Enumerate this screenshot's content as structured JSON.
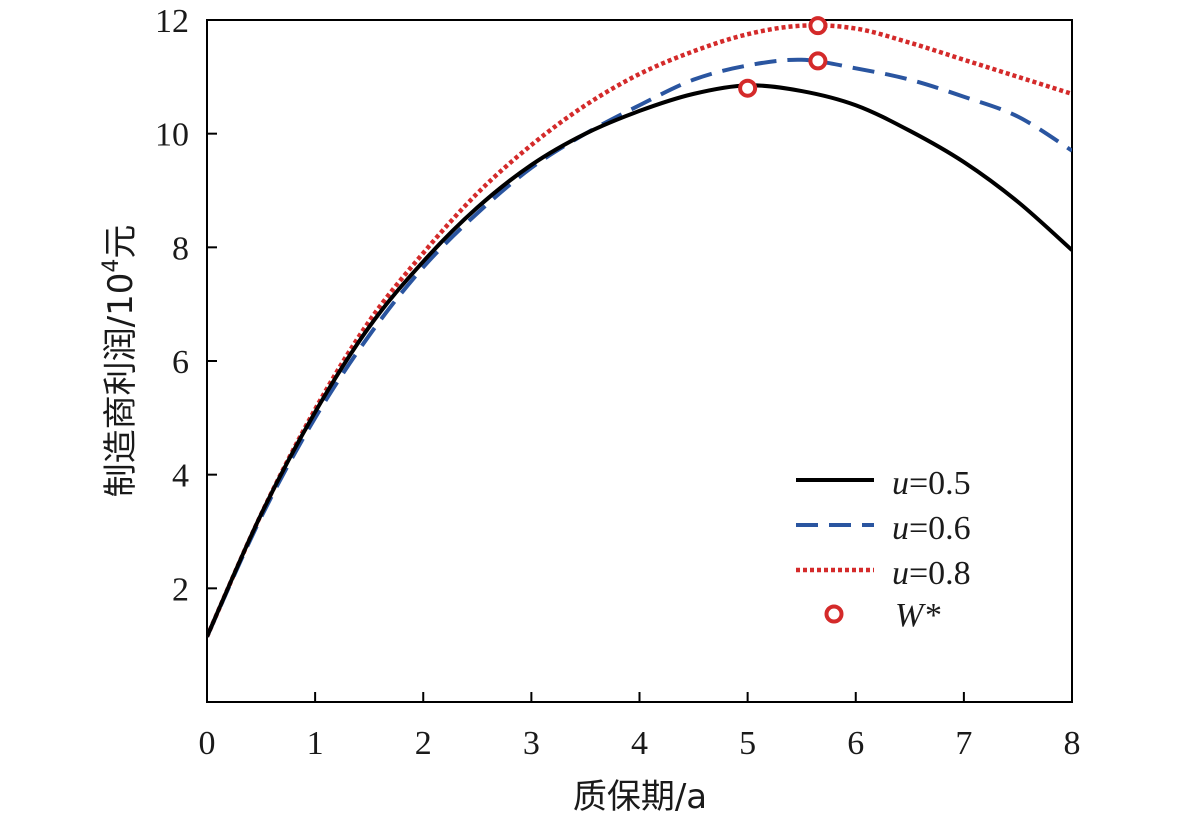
{
  "chart_data": {
    "type": "line",
    "xlabel": "质保期/a",
    "ylabel_main": "制造商利润/10",
    "ylabel_sup": "4",
    "ylabel_unit": "元",
    "xlim": [
      0,
      8
    ],
    "ylim": [
      0,
      12
    ],
    "xticks": [
      0,
      1,
      2,
      3,
      4,
      5,
      6,
      7,
      8
    ],
    "yticks": [
      2,
      4,
      6,
      8,
      10,
      12
    ],
    "legend_position": "bottom-right",
    "series": [
      {
        "name": "u=0.5",
        "name_var": "u",
        "name_rest": "=0.5",
        "color": "#000000",
        "style": "solid",
        "x": [
          0,
          0.5,
          1,
          1.5,
          2,
          2.5,
          3,
          3.5,
          4,
          4.5,
          5,
          5.5,
          6,
          6.5,
          7,
          7.5,
          8
        ],
        "y": [
          1.15,
          3.3,
          5.1,
          6.6,
          7.75,
          8.7,
          9.45,
          10.0,
          10.4,
          10.7,
          10.85,
          10.75,
          10.5,
          10.05,
          9.5,
          8.8,
          7.95
        ]
      },
      {
        "name": "u=0.6",
        "name_var": "u",
        "name_rest": "=0.6",
        "color": "#2a55a0",
        "style": "dashed",
        "x": [
          0,
          0.5,
          1,
          1.5,
          2,
          2.5,
          3,
          3.5,
          4,
          4.5,
          5,
          5.5,
          6,
          6.5,
          7,
          7.5,
          8
        ],
        "y": [
          1.15,
          3.25,
          5.0,
          6.45,
          7.65,
          8.6,
          9.4,
          10.0,
          10.5,
          10.95,
          11.2,
          11.3,
          11.15,
          10.95,
          10.65,
          10.3,
          9.7
        ]
      },
      {
        "name": "u=0.8",
        "name_var": "u",
        "name_rest": "=0.8",
        "color": "#d42a2a",
        "style": "dotted",
        "x": [
          0,
          0.5,
          1,
          1.5,
          2,
          2.5,
          3,
          3.5,
          4,
          4.5,
          5,
          5.5,
          6,
          6.5,
          7,
          7.5,
          8
        ],
        "y": [
          1.15,
          3.3,
          5.15,
          6.7,
          7.9,
          8.95,
          9.8,
          10.5,
          11.05,
          11.45,
          11.75,
          11.9,
          11.85,
          11.6,
          11.3,
          11.0,
          10.7
        ]
      }
    ],
    "markers": {
      "name": "W*",
      "name_var": "W",
      "name_rest": "*",
      "color": "#d42a2a",
      "points": [
        {
          "x": 5.0,
          "y": 10.8
        },
        {
          "x": 5.65,
          "y": 11.28
        },
        {
          "x": 5.65,
          "y": 11.9
        }
      ]
    }
  }
}
